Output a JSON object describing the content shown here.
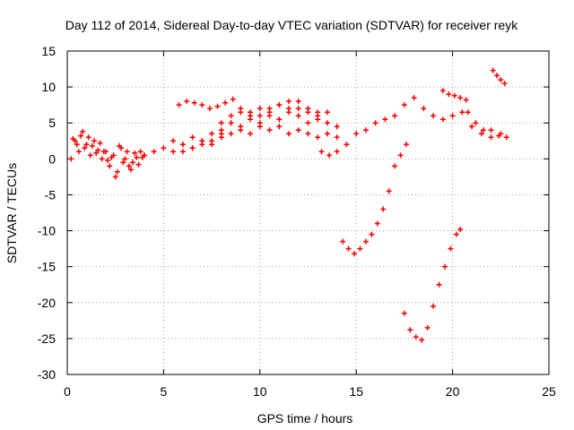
{
  "chart_data": {
    "type": "scatter",
    "title": "Day 112 of 2014, Sidereal Day-to-day VTEC variation (SDTVAR) for receiver reyk",
    "xlabel": "GPS time / hours",
    "ylabel": "SDTVAR / TECUs",
    "xlim": [
      0,
      25
    ],
    "ylim": [
      -30,
      15
    ],
    "xticks": [
      "0",
      "5",
      "10",
      "15",
      "20",
      "25"
    ],
    "yticks": [
      "15",
      "10",
      "5",
      "0",
      "-5",
      "-10",
      "-15",
      "-20",
      "-25",
      "-30"
    ],
    "grid": true,
    "legend": "none",
    "marker": "+",
    "color": "#ff0000",
    "series": [
      {
        "x": [
          0.2,
          0.4,
          0.6,
          0.8,
          1.0,
          1.2,
          1.4,
          1.6,
          1.8,
          2.0,
          2.2,
          2.4,
          2.6,
          2.8,
          3.0,
          3.2,
          3.4,
          3.6,
          3.8,
          4.0
        ],
        "y": [
          0.0,
          2.5,
          1.0,
          3.8,
          2.0,
          0.5,
          2.5,
          1.2,
          0.0,
          1.0,
          -1.0,
          0.5,
          -1.8,
          1.5,
          0.0,
          -1.0,
          -0.5,
          0.2,
          1.0,
          0.5
        ]
      },
      {
        "x": [
          0.3,
          0.5,
          0.7,
          0.9,
          1.1,
          1.3,
          1.5,
          1.7,
          1.9,
          2.1,
          2.3,
          2.5,
          2.7,
          2.9,
          3.1,
          3.3,
          3.5,
          3.7,
          3.9
        ],
        "y": [
          2.8,
          2.0,
          3.2,
          1.5,
          3.0,
          1.8,
          0.8,
          2.2,
          1.0,
          -0.2,
          0.2,
          -2.5,
          1.8,
          -0.5,
          1.0,
          -1.5,
          0.8,
          -0.8,
          0.2
        ]
      },
      {
        "x": [
          4.0,
          4.5,
          5.0,
          5.5,
          6.0,
          6.5,
          7.0,
          7.5,
          8.0,
          8.5,
          9.0,
          9.5,
          10.0,
          10.5,
          11.0,
          11.5,
          12.0,
          12.5,
          13.0,
          13.5,
          14.0
        ],
        "y": [
          0.5,
          1.0,
          1.5,
          1.0,
          2.0,
          1.5,
          2.5,
          2.0,
          3.0,
          3.5,
          4.0,
          3.5,
          4.5,
          4.0,
          4.5,
          3.5,
          4.0,
          3.5,
          3.0,
          3.5,
          3.0
        ]
      },
      {
        "x": [
          5.5,
          6.0,
          6.5,
          7.0,
          7.5,
          8.0,
          8.5,
          9.0,
          9.5,
          10.0,
          10.5,
          11.0,
          11.5,
          12.0,
          12.5,
          13.0
        ],
        "y": [
          2.5,
          2.0,
          3.0,
          2.5,
          3.5,
          4.0,
          5.0,
          4.5,
          5.5,
          5.0,
          6.0,
          5.5,
          6.5,
          6.0,
          5.0,
          5.5
        ]
      },
      {
        "x": [
          6.0,
          6.5,
          7.0,
          7.5,
          8.0,
          8.5,
          9.0,
          9.5,
          10.0,
          10.5,
          11.0,
          11.5,
          12.0,
          12.5,
          13.0,
          13.5,
          14.0
        ],
        "y": [
          1.0,
          1.5,
          2.0,
          2.5,
          3.5,
          5.0,
          6.5,
          6.0,
          7.0,
          6.5,
          7.5,
          7.0,
          8.0,
          7.0,
          6.5,
          5.0,
          4.5
        ]
      },
      {
        "x": [
          8.0,
          8.5,
          9.0,
          9.5,
          10.0,
          10.5,
          11.0,
          11.5,
          12.0,
          12.5,
          13.0,
          13.5
        ],
        "y": [
          5.0,
          6.0,
          7.0,
          6.5,
          6.0,
          7.0,
          7.5,
          8.0,
          7.0,
          6.5,
          6.0,
          6.5
        ]
      },
      {
        "x": [
          5.8,
          6.2,
          6.6,
          7.0,
          7.4,
          7.8,
          8.2,
          8.6
        ],
        "y": [
          7.5,
          8.0,
          7.8,
          7.5,
          7.0,
          7.3,
          7.8,
          8.3
        ]
      },
      {
        "x": [
          13.2,
          13.6,
          14.0,
          14.5,
          15.0,
          15.5,
          16.0,
          16.5,
          17.0,
          17.5,
          18.0,
          18.5,
          19.0,
          19.5,
          20.0,
          20.5,
          21.0,
          21.5,
          22.0,
          22.5
        ],
        "y": [
          1.0,
          0.5,
          1.0,
          2.0,
          3.5,
          4.0,
          5.0,
          5.5,
          6.0,
          7.5,
          8.5,
          7.0,
          6.0,
          5.5,
          6.0,
          6.5,
          4.5,
          3.5,
          3.0,
          3.5
        ]
      },
      {
        "x": [
          19.5,
          19.8,
          20.1,
          20.4,
          20.7
        ],
        "y": [
          9.5,
          9.0,
          8.8,
          8.5,
          8.2
        ]
      },
      {
        "x": [
          20.8,
          21.2,
          21.6,
          22.0,
          22.4,
          22.8
        ],
        "y": [
          6.5,
          5.0,
          4.0,
          4.0,
          3.2,
          3.0
        ]
      },
      {
        "x": [
          22.1,
          22.3,
          22.5,
          22.7
        ],
        "y": [
          12.3,
          11.6,
          11.0,
          10.5
        ]
      },
      {
        "x": [
          14.3,
          14.6,
          14.9,
          15.2,
          15.5,
          15.8,
          16.1,
          16.4,
          16.7,
          17.0,
          17.3,
          17.6
        ],
        "y": [
          -11.5,
          -12.5,
          -13.2,
          -12.5,
          -11.5,
          -10.5,
          -9.0,
          -7.0,
          -4.5,
          -1.0,
          0.5,
          2.0
        ]
      },
      {
        "x": [
          17.5,
          17.8,
          18.1,
          18.4,
          18.7,
          19.0,
          19.3,
          19.6,
          19.9,
          20.2,
          20.4
        ],
        "y": [
          -21.5,
          -23.8,
          -24.8,
          -25.2,
          -23.5,
          -20.5,
          -17.5,
          -15.0,
          -12.5,
          -10.5,
          -9.8
        ]
      }
    ]
  }
}
